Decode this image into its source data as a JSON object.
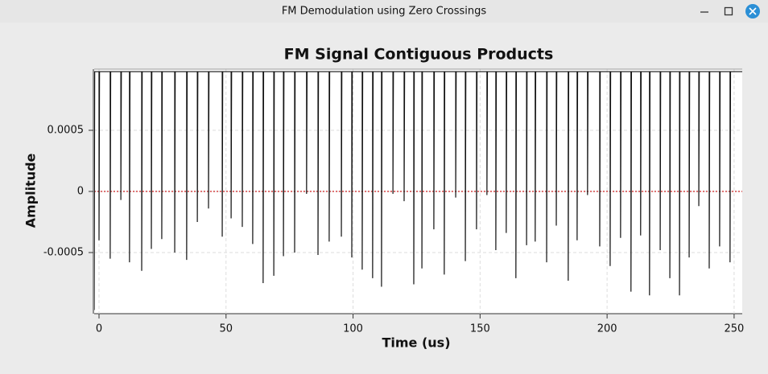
{
  "window": {
    "title": "FM Demodulation using Zero Crossings"
  },
  "chart_data": {
    "type": "line",
    "title": "FM Signal Contiguous Products",
    "x_label": "Time (us)",
    "y_label": "Amplitude",
    "xlim": [
      -1.9,
      253.2
    ],
    "ylim": [
      -0.001,
      0.001
    ],
    "xticks": [
      0,
      50,
      100,
      150,
      200,
      250
    ],
    "yticks": [
      -0.0005,
      0,
      0.0005
    ],
    "grid": true,
    "hline": 0,
    "hline_color": "#cc2222",
    "x": [
      -1.9,
      -1.7,
      0,
      0,
      0.2,
      4.4,
      4.4,
      4.6,
      8.6,
      8.6,
      8.8,
      12,
      12,
      12.2,
      16.8,
      16.8,
      17,
      20.6,
      20.6,
      20.8,
      24.7,
      24.7,
      24.9,
      29.8,
      29.8,
      30,
      34.5,
      34.5,
      34.7,
      38.7,
      38.7,
      38.9,
      43.1,
      43.1,
      43.3,
      48.5,
      48.5,
      48.7,
      52,
      52,
      52.2,
      56.4,
      56.4,
      56.6,
      60.5,
      60.5,
      60.7,
      64.6,
      64.6,
      64.8,
      68.8,
      68.8,
      69,
      72.6,
      72.6,
      72.8,
      77,
      77,
      77.2,
      81.7,
      81.7,
      81.9,
      86.2,
      86.2,
      86.4,
      90.6,
      90.6,
      90.8,
      95.4,
      95.4,
      95.6,
      99.5,
      99.5,
      99.7,
      103.6,
      103.6,
      103.8,
      107.7,
      107.7,
      107.9,
      111.2,
      111.2,
      111.4,
      115.7,
      115.7,
      115.9,
      120.1,
      120.1,
      120.3,
      123.9,
      123.9,
      124.1,
      127.1,
      127.1,
      127.3,
      131.8,
      131.8,
      132,
      135.9,
      135.9,
      136.1,
      140.4,
      140.4,
      140.6,
      144.2,
      144.2,
      144.4,
      148.6,
      148.6,
      148.8,
      152.7,
      152.7,
      152.9,
      156.2,
      156.2,
      156.4,
      160.3,
      160.3,
      160.5,
      164.1,
      164.1,
      164.3,
      168.3,
      168.3,
      168.5,
      171.7,
      171.7,
      171.9,
      176.2,
      176.2,
      176.4,
      180,
      180,
      180.2,
      184.7,
      184.7,
      184.9,
      188.2,
      188.2,
      188.4,
      192.3,
      192.3,
      192.5,
      197.1,
      197.1,
      197.3,
      201.2,
      201.2,
      201.4,
      205.3,
      205.3,
      205.5,
      209.4,
      209.4,
      209.6,
      213.2,
      213.2,
      213.4,
      216.7,
      216.7,
      216.9,
      220.9,
      220.9,
      221.1,
      224.7,
      224.7,
      224.9,
      228.5,
      228.5,
      228.7,
      232.3,
      232.3,
      232.5,
      236.1,
      236.1,
      236.3,
      240.2,
      240.2,
      240.4,
      244.3,
      244.3,
      244.5,
      248.4,
      248.4,
      248.6,
      253.2
    ],
    "series": [
      {
        "color": "#111111",
        "values": [
          -0.00097,
          0.00098,
          0.00098,
          -0.0004,
          0.00098,
          0.00098,
          -0.00055,
          0.00098,
          0.00098,
          -7e-05,
          0.00098,
          0.00098,
          -0.00058,
          0.00098,
          0.00098,
          -0.00065,
          0.00098,
          0.00098,
          -0.00047,
          0.00098,
          0.00098,
          -0.00039,
          0.00098,
          0.00098,
          -0.0005,
          0.00098,
          0.00098,
          -0.00056,
          0.00098,
          0.00098,
          -0.00025,
          0.00098,
          0.00098,
          -0.00014,
          0.00098,
          0.00098,
          -0.00037,
          0.00098,
          0.00098,
          -0.00022,
          0.00098,
          0.00098,
          -0.00029,
          0.00098,
          0.00098,
          -0.00043,
          0.00098,
          0.00098,
          -0.00075,
          0.00098,
          0.00098,
          -0.00069,
          0.00098,
          0.00098,
          -0.00053,
          0.00098,
          0.00098,
          -0.0005,
          0.00098,
          0.00098,
          -2e-05,
          0.00098,
          0.00098,
          -0.00052,
          0.00098,
          0.00098,
          -0.00041,
          0.00098,
          0.00098,
          -0.00037,
          0.00098,
          0.00098,
          -0.00054,
          0.00098,
          0.00098,
          -0.00064,
          0.00098,
          0.00098,
          -0.00071,
          0.00098,
          0.00098,
          -0.00078,
          0.00098,
          0.00098,
          -2e-05,
          0.00098,
          0.00098,
          -8e-05,
          0.00098,
          0.00098,
          -0.00076,
          0.00098,
          0.00098,
          -0.00063,
          0.00098,
          0.00098,
          -0.00031,
          0.00098,
          0.00098,
          -0.00068,
          0.00098,
          0.00098,
          -5e-05,
          0.00098,
          0.00098,
          -0.00057,
          0.00098,
          0.00098,
          -0.00031,
          0.00098,
          0.00098,
          -3e-05,
          0.00098,
          0.00098,
          -0.00048,
          0.00098,
          0.00098,
          -0.00034,
          0.00098,
          0.00098,
          -0.00071,
          0.00098,
          0.00098,
          -0.00044,
          0.00098,
          0.00098,
          -0.00041,
          0.00098,
          0.00098,
          -0.00058,
          0.00098,
          0.00098,
          -0.00028,
          0.00098,
          0.00098,
          -0.00073,
          0.00098,
          0.00098,
          -0.0004,
          0.00098,
          0.00098,
          -3e-05,
          0.00098,
          0.00098,
          -0.00045,
          0.00098,
          0.00098,
          -0.00061,
          0.00098,
          0.00098,
          -0.00038,
          0.00098,
          0.00098,
          -0.00082,
          0.00098,
          0.00098,
          -0.00036,
          0.00098,
          0.00098,
          -0.00085,
          0.00098,
          0.00098,
          -0.00048,
          0.00098,
          0.00098,
          -0.00071,
          0.00098,
          0.00098,
          -0.00085,
          0.00098,
          0.00098,
          -0.00054,
          0.00098,
          0.00098,
          -0.00012,
          0.00098,
          0.00098,
          -0.00063,
          0.00098,
          0.00098,
          -0.00045,
          0.00098,
          0.00098,
          -0.00058,
          0.00098,
          0.00098
        ]
      }
    ]
  }
}
